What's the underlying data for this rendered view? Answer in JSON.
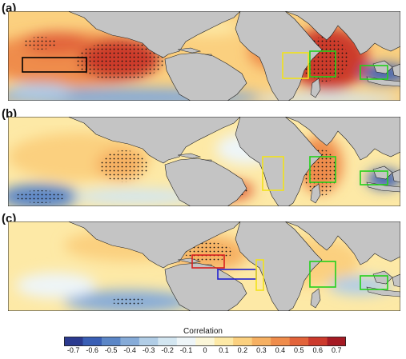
{
  "panels": [
    {
      "label": "(a)"
    },
    {
      "label": "(b)"
    },
    {
      "label": "(c)"
    }
  ],
  "colorbar": {
    "title": "Correlation",
    "ticks": [
      "-0.7",
      "-0.6",
      "-0.5",
      "-0.4",
      "-0.3",
      "-0.2",
      "-0.1",
      "0",
      "0.1",
      "0.2",
      "0.3",
      "0.4",
      "0.5",
      "0.6",
      "0.7"
    ],
    "colors": [
      "#2b3a8f",
      "#3a5fb5",
      "#5b86c7",
      "#86abd8",
      "#b1cde6",
      "#d3e6f1",
      "#eef5f8",
      "#fbf6d8",
      "#fde9a6",
      "#fbd07f",
      "#f6b062",
      "#ef8c4b",
      "#e2633a",
      "#cc3a2c",
      "#a51a23"
    ]
  },
  "colors": {
    "land": "#c4c4c4",
    "coast": "#222222",
    "box_black": "#000000",
    "box_yellow": "#f2e21b",
    "box_green": "#22d11a",
    "box_red": "#d91f1f",
    "box_blue": "#1f1fd1"
  }
}
